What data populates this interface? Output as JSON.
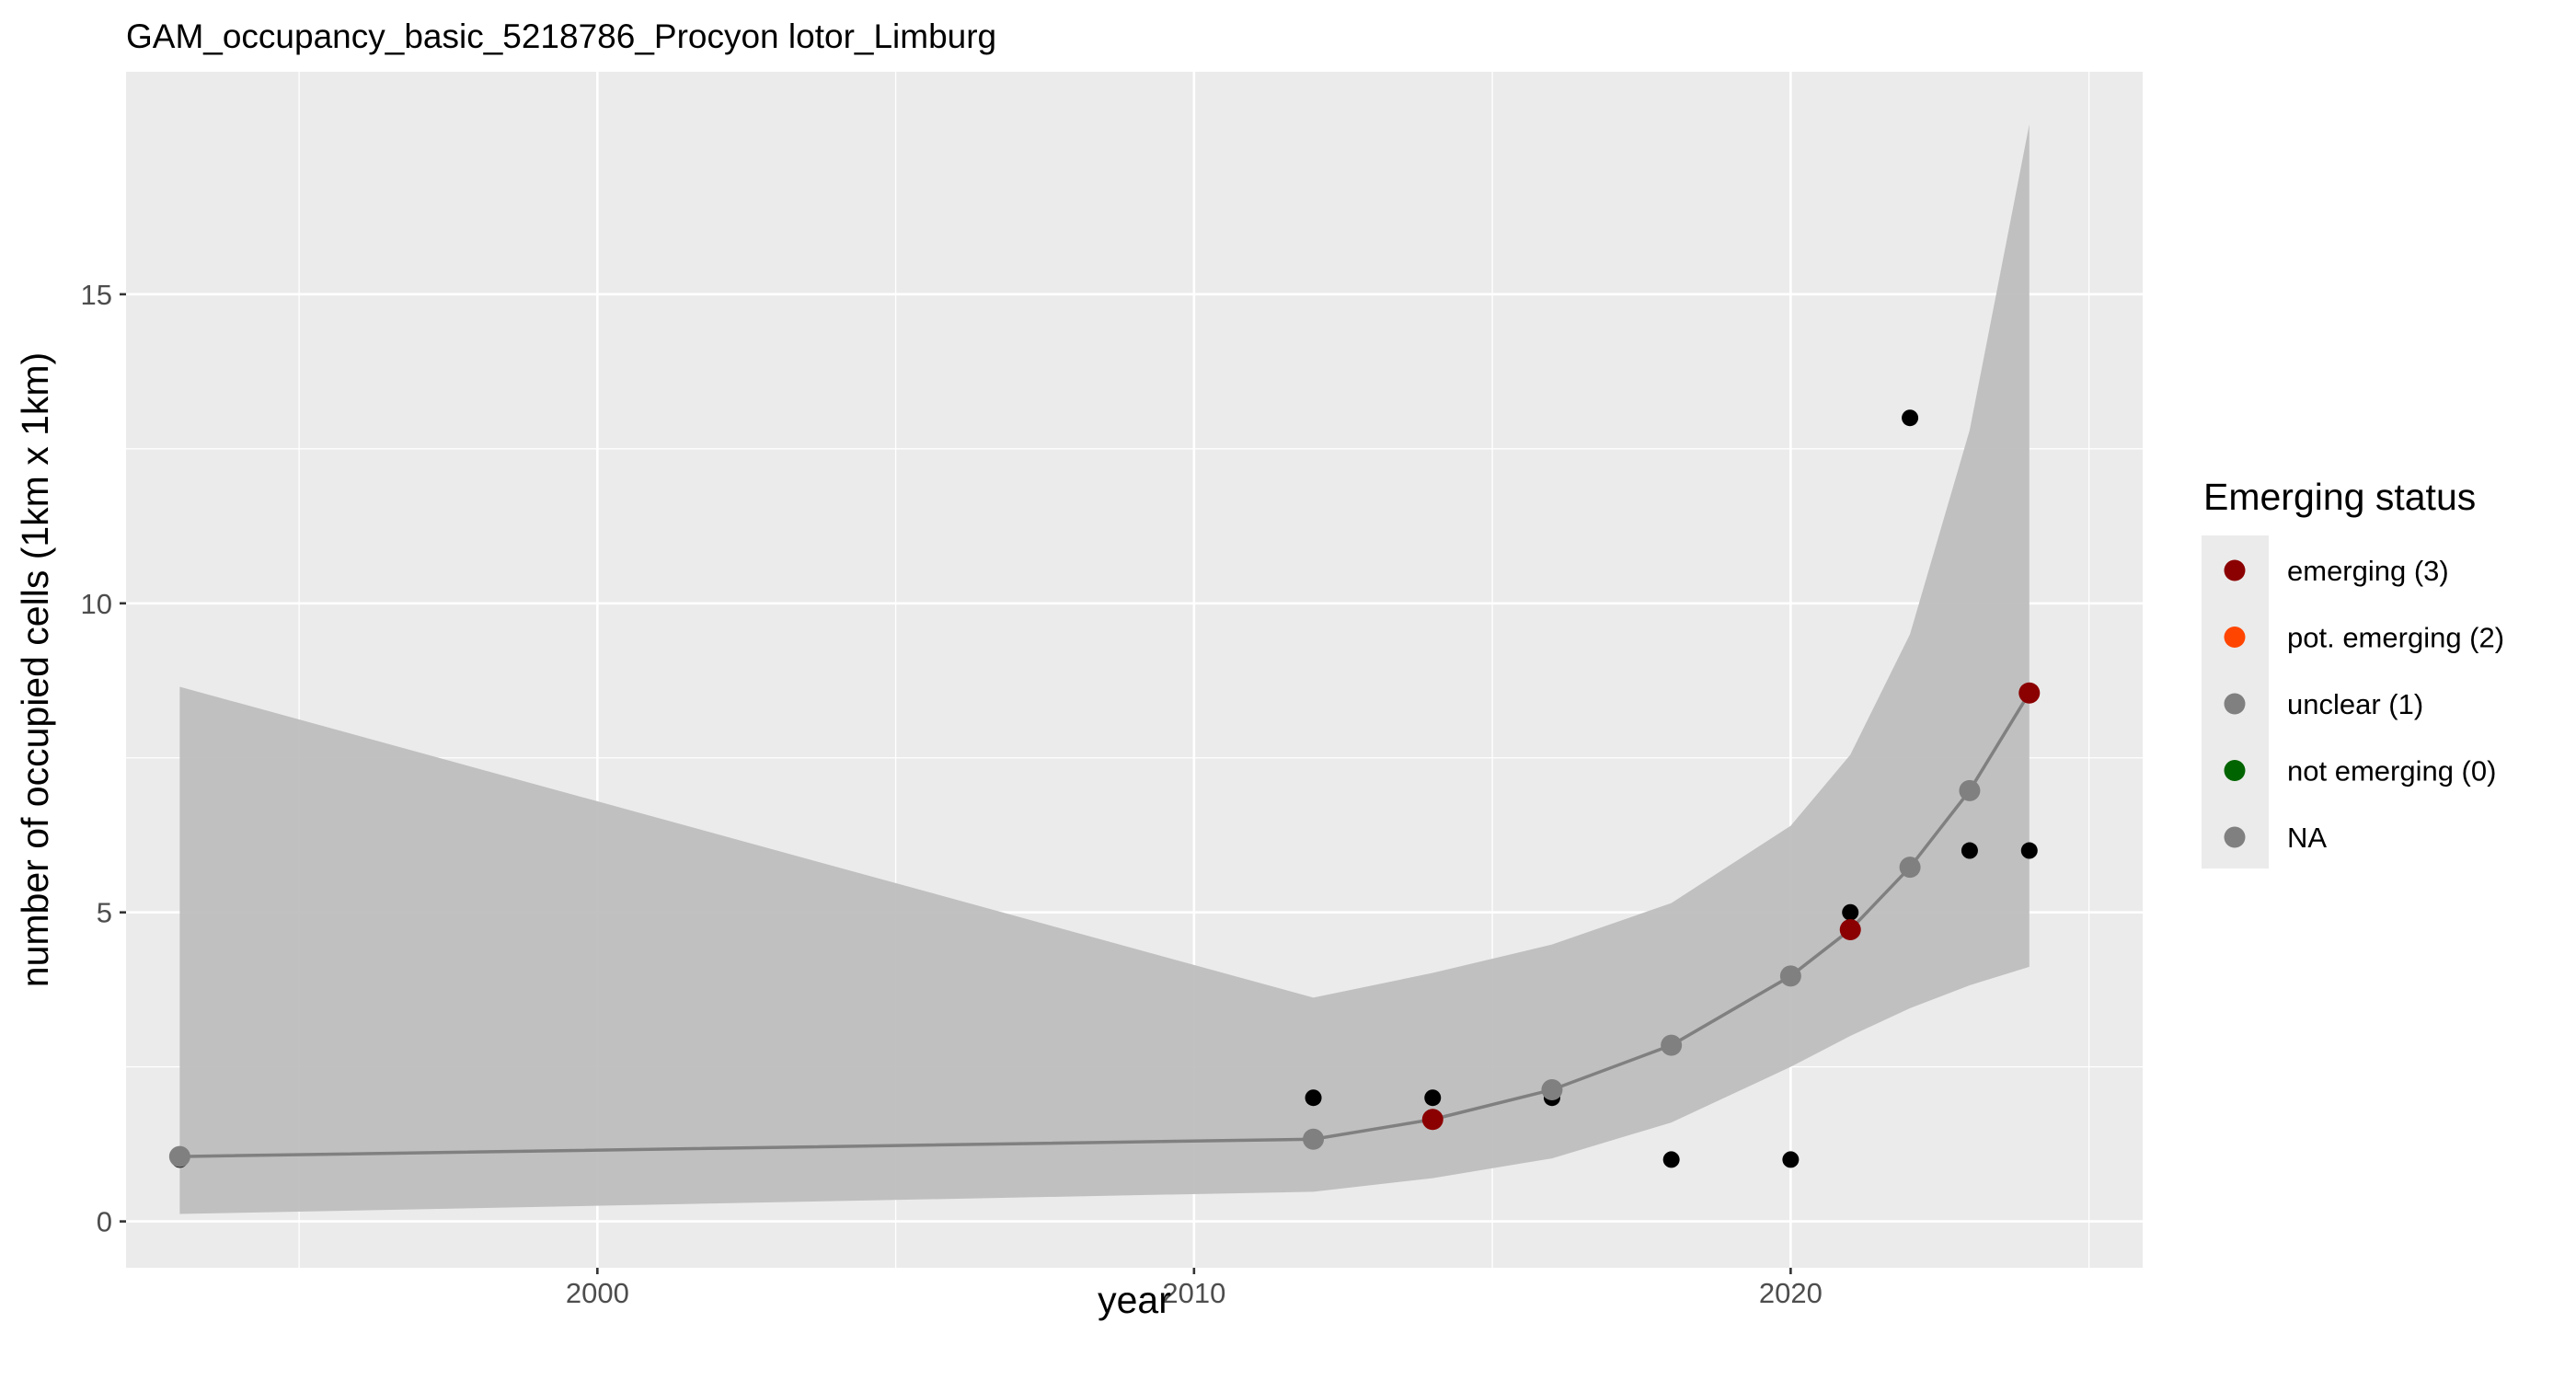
{
  "chart_data": {
    "type": "line",
    "title": "GAM_occupancy_basic_5218786_Procyon lotor_Limburg",
    "xlabel": "year",
    "ylabel": "number of occupied cells (1km x 1km)",
    "xlim": [
      1992.1,
      2025.9
    ],
    "ylim": [
      -0.75,
      18.6
    ],
    "x_ticks": [
      2000,
      2010,
      2020
    ],
    "x_tick_labels": [
      "2000",
      "2010",
      "2020"
    ],
    "y_ticks": [
      0,
      5,
      10,
      15
    ],
    "y_tick_labels": [
      "0",
      "5",
      "10",
      "15"
    ],
    "x_minor_ticks": [
      1995,
      2005,
      2015,
      2025
    ],
    "y_minor_ticks": [
      2.5,
      7.5,
      12.5
    ],
    "grid": true,
    "legend": {
      "title": "Emerging status",
      "position": "right",
      "items": [
        {
          "label": "emerging (3)",
          "color": "#8b0000"
        },
        {
          "label": "pot. emerging (2)",
          "color": "#ff4500"
        },
        {
          "label": "unclear (1)",
          "color": "#808080"
        },
        {
          "label": "not emerging (0)",
          "color": "#006400"
        },
        {
          "label": "NA",
          "color": "#808080"
        }
      ]
    },
    "observed": {
      "color": "#000000",
      "points": [
        {
          "x": 1993,
          "y": 1
        },
        {
          "x": 2012,
          "y": 2
        },
        {
          "x": 2014,
          "y": 2
        },
        {
          "x": 2016,
          "y": 2
        },
        {
          "x": 2018,
          "y": 1
        },
        {
          "x": 2020,
          "y": 1
        },
        {
          "x": 2021,
          "y": 5
        },
        {
          "x": 2022,
          "y": 13
        },
        {
          "x": 2023,
          "y": 6
        },
        {
          "x": 2024,
          "y": 6
        }
      ]
    },
    "fitted": {
      "line_color": "#808080",
      "ribbon_color": "#bebebe",
      "points": [
        {
          "x": 1993,
          "y": 1.05,
          "lower": 0.12,
          "upper": 8.65,
          "status": "unclear (1)"
        },
        {
          "x": 2012,
          "y": 1.33,
          "lower": 0.48,
          "upper": 3.62,
          "status": "unclear (1)"
        },
        {
          "x": 2014,
          "y": 1.65,
          "lower": 0.7,
          "upper": 4.02,
          "status": "emerging (3)"
        },
        {
          "x": 2016,
          "y": 2.13,
          "lower": 1.02,
          "upper": 4.48,
          "status": "unclear (1)"
        },
        {
          "x": 2018,
          "y": 2.85,
          "lower": 1.6,
          "upper": 5.15,
          "status": "unclear (1)"
        },
        {
          "x": 2020,
          "y": 3.97,
          "lower": 2.5,
          "upper": 6.4,
          "status": "unclear (1)"
        },
        {
          "x": 2021,
          "y": 4.72,
          "lower": 3.0,
          "upper": 7.55,
          "status": "emerging (3)"
        },
        {
          "x": 2022,
          "y": 5.73,
          "lower": 3.45,
          "upper": 9.5,
          "status": "unclear (1)"
        },
        {
          "x": 2023,
          "y": 6.97,
          "lower": 3.82,
          "upper": 12.8,
          "status": "unclear (1)"
        },
        {
          "x": 2024,
          "y": 8.55,
          "lower": 4.12,
          "upper": 17.75,
          "status": "emerging (3)"
        }
      ]
    }
  }
}
